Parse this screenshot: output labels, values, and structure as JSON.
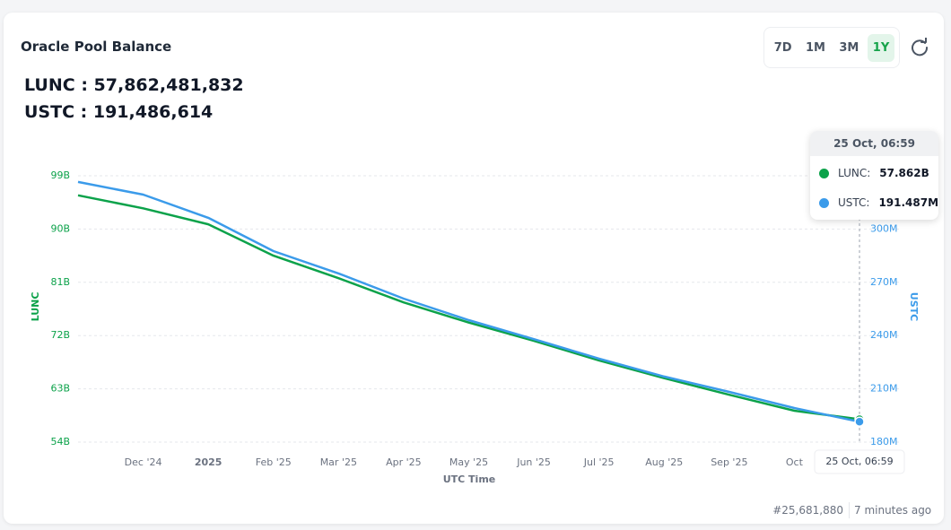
{
  "header": {
    "title": "Oracle Pool Balance",
    "summary": [
      {
        "label": "LUNC",
        "value": "57,862,481,832"
      },
      {
        "label": "USTC",
        "value": "191,486,614"
      }
    ],
    "range_buttons": [
      "7D",
      "1M",
      "3M",
      "1Y"
    ]
  },
  "chart_data": {
    "type": "line",
    "x": [
      null,
      "Dec '24",
      "2025",
      "Feb '25",
      "Mar '25",
      "Apr '25",
      "May '25",
      "Jun '25",
      "Jul '25",
      "Aug '25",
      "Sep '25",
      "Oct",
      "25 Oct, 06:59"
    ],
    "series": [
      {
        "name": "LUNC",
        "color": "#0ca24a",
        "values": [
          95.7,
          93.5,
          90.8,
          85.5,
          81.7,
          77.6,
          74.2,
          71.1,
          67.8,
          64.8,
          62.0,
          59.3,
          57.862
        ]
      },
      {
        "name": "USTC",
        "color": "#3b9bea",
        "axis": "y2",
        "values": [
          326.5,
          319.4,
          306.3,
          287.6,
          275.0,
          260.8,
          248.7,
          238.0,
          227.0,
          216.9,
          208.3,
          199.2,
          191.487
        ]
      }
    ],
    "ylabel": "LUNC",
    "y2label": "USTC",
    "xlabel": "UTC Time",
    "ylim": [
      54,
      99
    ],
    "yticks": [
      {
        "value": 54,
        "label": "54B"
      },
      {
        "value": 63,
        "label": "63B"
      },
      {
        "value": 72,
        "label": "72B"
      },
      {
        "value": 81,
        "label": "81B"
      },
      {
        "value": 90,
        "label": "90B"
      },
      {
        "value": 99,
        "label": "99B"
      }
    ],
    "y2lim": [
      180,
      330
    ],
    "y2ticks": [
      {
        "value": 180,
        "label": "180M"
      },
      {
        "value": 210,
        "label": "210M"
      },
      {
        "value": 240,
        "label": "240M"
      },
      {
        "value": 270,
        "label": "270M"
      },
      {
        "value": 300,
        "label": "300M"
      }
    ],
    "grid": true,
    "tooltip": {
      "items": [
        {
          "name": "LUNC:",
          "value": "57.862B"
        },
        {
          "name": "USTC:",
          "value": "191.487M"
        }
      ]
    }
  },
  "footer": {
    "block": "#25,681,880",
    "updated": "7 minutes ago"
  }
}
